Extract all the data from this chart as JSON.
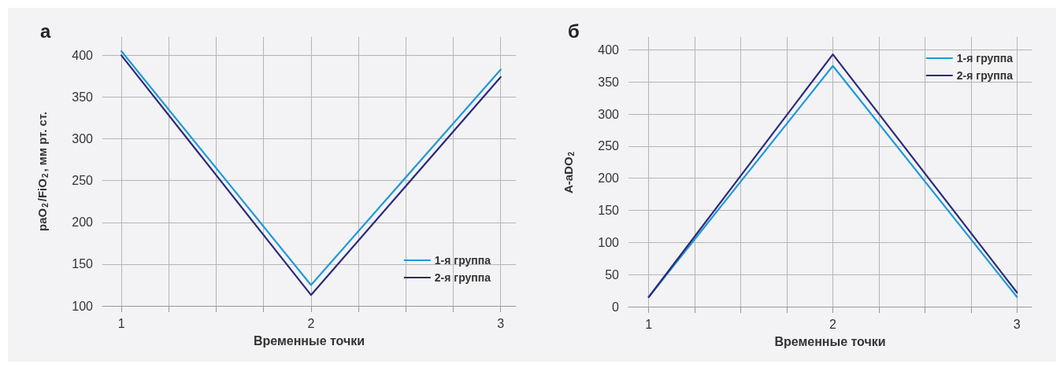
{
  "chart_data": [
    {
      "type": "line",
      "title": "а",
      "xlabel": "Временные точки",
      "ylabel": "paO$_{2}$/FiO$_{2}$, мм рт. ст.",
      "x": [
        1,
        2,
        3
      ],
      "series": [
        {
          "name": "1-я группа",
          "color": "#1f9ad6",
          "values": [
            405,
            125,
            383
          ]
        },
        {
          "name": "2-я группа",
          "color": "#2b2a7a",
          "values": [
            400,
            113,
            374
          ]
        }
      ],
      "xlim": [
        0.9,
        3.08
      ],
      "xticks": [
        1,
        {
          "value": 1.25,
          "label": null
        },
        {
          "value": 1.5,
          "label": null
        },
        {
          "value": 1.75,
          "label": null
        },
        2,
        {
          "value": 2.25,
          "label": null
        },
        {
          "value": 2.5,
          "label": null
        },
        {
          "value": 2.75,
          "label": null
        },
        3
      ],
      "ylim": [
        100,
        422
      ],
      "yticks": [
        100,
        150,
        200,
        250,
        300,
        350,
        400
      ],
      "grid": true,
      "legend": "bottom right",
      "marker": "none",
      "line_style": "solid"
    },
    {
      "type": "line",
      "title": "б",
      "xlabel": "Временные точки",
      "ylabel": "A-aDO$_{2}$",
      "x": [
        1,
        2,
        3
      ],
      "series": [
        {
          "name": "1-я группа",
          "color": "#1f9ad6",
          "values": [
            15,
            375,
            15
          ]
        },
        {
          "name": "2-я группа",
          "color": "#2b2a7a",
          "values": [
            15,
            393,
            22
          ]
        }
      ],
      "xlim": [
        0.89,
        3.08
      ],
      "xticks": [
        1,
        {
          "value": 1.25,
          "label": null
        },
        {
          "value": 1.5,
          "label": null
        },
        {
          "value": 1.75,
          "label": null
        },
        2,
        {
          "value": 2.25,
          "label": null
        },
        {
          "value": 2.5,
          "label": null
        },
        {
          "value": 2.75,
          "label": null
        },
        3
      ],
      "ylim": [
        0,
        420
      ],
      "yticks": [
        0,
        50,
        100,
        150,
        200,
        250,
        300,
        350,
        400
      ],
      "grid": true,
      "legend": "top right",
      "marker": "none",
      "line_style": "solid"
    }
  ]
}
